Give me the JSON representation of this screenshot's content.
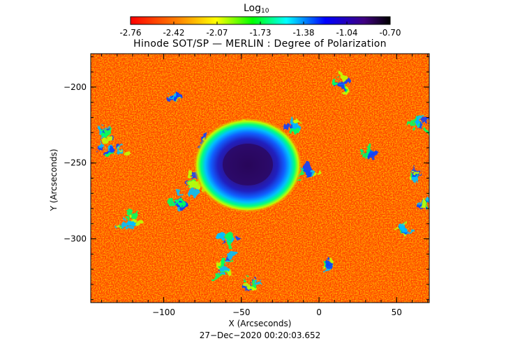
{
  "colorbar": {
    "title": "Log",
    "title_subscript": "10",
    "tick_labels": [
      "-2.76",
      "-2.42",
      "-2.07",
      "-1.73",
      "-1.38",
      "-1.04",
      "-0.70"
    ],
    "colormap": [
      "#ff0000",
      "#ff8000",
      "#ffff00",
      "#00ff00",
      "#00ffff",
      "#0000ff",
      "#400080",
      "#000000"
    ]
  },
  "plot": {
    "title": "Hinode SOT/SP — MERLIN : Degree of Polarization",
    "xlabel": "X (Arcseconds)",
    "ylabel": "Y (Arcseconds)",
    "xlim": [
      -147,
      71
    ],
    "ylim": [
      -342,
      -178
    ],
    "x_ticks": [
      {
        "value": -100,
        "label": "−100"
      },
      {
        "value": -50,
        "label": "−50"
      },
      {
        "value": 0,
        "label": "0"
      },
      {
        "value": 50,
        "label": "50"
      }
    ],
    "y_ticks": [
      {
        "value": -200,
        "label": "−200"
      },
      {
        "value": -250,
        "label": "−250"
      },
      {
        "value": -300,
        "label": "−300"
      }
    ],
    "sunspot_center": [
      -48,
      -250
    ],
    "timestamp": "27−Dec−2020 00:20:03.652"
  }
}
